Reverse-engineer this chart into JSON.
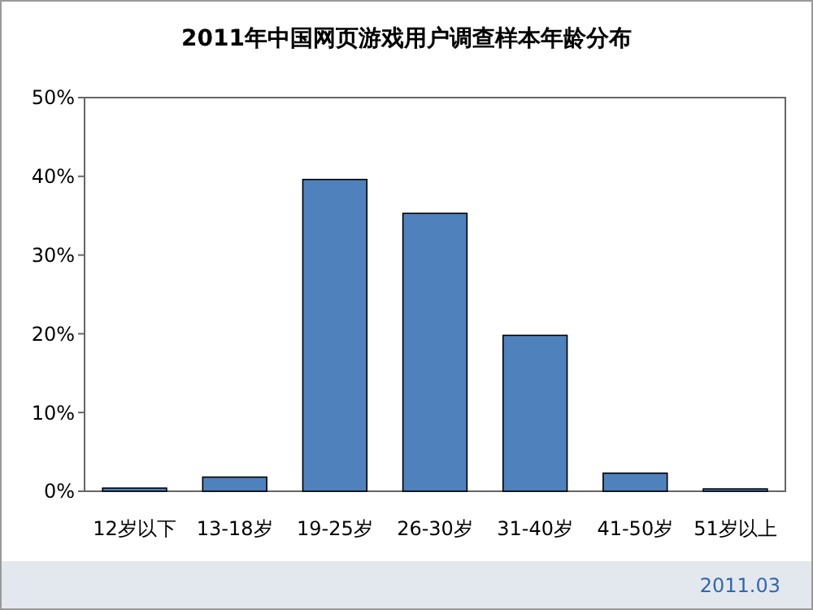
{
  "chart_data": {
    "type": "bar",
    "title": "2011年中国网页游戏用户调查样本年龄分布",
    "categories": [
      "12岁以下",
      "13-18岁",
      "19-25岁",
      "26-30岁",
      "31-40岁",
      "41-50岁",
      "51岁以上"
    ],
    "values": [
      0.4,
      1.8,
      39.6,
      35.3,
      19.8,
      2.3,
      0.3
    ],
    "color": "#4f81bd",
    "ylim": [
      0,
      50
    ],
    "yticks": [
      {
        "value": 0,
        "label": "0%"
      },
      {
        "value": 10,
        "label": "10%"
      },
      {
        "value": 20,
        "label": "20%"
      },
      {
        "value": 30,
        "label": "30%"
      },
      {
        "value": 40,
        "label": "40%"
      },
      {
        "value": 50,
        "label": "50%"
      }
    ],
    "annotations": [
      "2011.03"
    ]
  }
}
